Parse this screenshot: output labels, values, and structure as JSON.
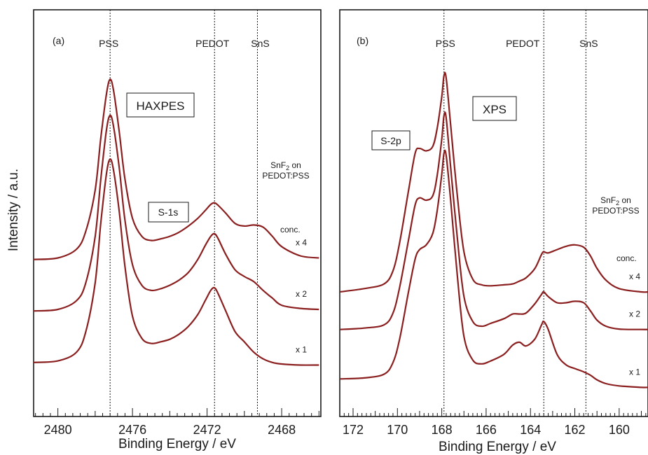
{
  "ylabel": "Intensity / a.u.",
  "chart_data": [
    {
      "type": "line",
      "panel": "(a)",
      "technique": "HAXPES",
      "orbital": "S-1s",
      "sample_label": [
        "SnF",
        "2",
        " on",
        "PEDOT:PSS"
      ],
      "conc_header": "conc.",
      "xlabel": "Binding Energy / eV",
      "xlim": [
        2481.3,
        2465.9
      ],
      "x_reversed": true,
      "xticks": [
        2480,
        2476,
        2472,
        2468
      ],
      "xtick_labels": [
        "2480",
        "2476",
        "2472",
        "2468"
      ],
      "references": [
        {
          "name": "PSS",
          "x": 2477.2
        },
        {
          "name": "PEDOT",
          "x": 2471.6
        },
        {
          "name": "SnS",
          "x": 2469.3
        }
      ],
      "series": [
        {
          "name": "x 4",
          "x": [
            2481.3,
            2480.0,
            2479.0,
            2478.5,
            2478.0,
            2477.7,
            2477.4,
            2477.2,
            2477.0,
            2476.7,
            2476.4,
            2476.0,
            2475.5,
            2475.0,
            2474.5,
            2474.0,
            2473.5,
            2473.0,
            2472.5,
            2472.1,
            2471.8,
            2471.6,
            2471.4,
            2471.0,
            2470.5,
            2470.0,
            2469.5,
            2469.0,
            2468.5,
            2468.0,
            2467.0,
            2466.0
          ],
          "y": [
            3.05,
            3.08,
            3.25,
            3.6,
            4.4,
            5.4,
            6.25,
            6.55,
            6.3,
            5.5,
            4.6,
            3.85,
            3.5,
            3.42,
            3.45,
            3.5,
            3.58,
            3.7,
            3.85,
            4.0,
            4.12,
            4.15,
            4.1,
            3.95,
            3.75,
            3.7,
            3.72,
            3.68,
            3.5,
            3.3,
            3.12,
            3.08
          ]
        },
        {
          "name": "x 2",
          "x": [
            2481.3,
            2480.0,
            2479.0,
            2478.5,
            2478.0,
            2477.7,
            2477.4,
            2477.2,
            2477.0,
            2476.7,
            2476.4,
            2476.0,
            2475.5,
            2475.0,
            2474.5,
            2474.0,
            2473.5,
            2473.0,
            2472.5,
            2472.1,
            2471.8,
            2471.6,
            2471.4,
            2471.0,
            2470.5,
            2470.0,
            2469.5,
            2469.0,
            2468.5,
            2468.0,
            2467.0,
            2466.0
          ],
          "y": [
            2.05,
            2.08,
            2.25,
            2.6,
            3.5,
            4.6,
            5.55,
            5.85,
            5.6,
            4.8,
            3.8,
            2.95,
            2.55,
            2.45,
            2.48,
            2.55,
            2.65,
            2.8,
            3.05,
            3.32,
            3.5,
            3.55,
            3.45,
            3.15,
            2.85,
            2.72,
            2.62,
            2.45,
            2.3,
            2.16,
            2.1,
            2.08
          ]
        },
        {
          "name": "x 1",
          "x": [
            2481.3,
            2480.0,
            2479.0,
            2478.5,
            2478.0,
            2477.7,
            2477.4,
            2477.2,
            2477.0,
            2476.7,
            2476.4,
            2476.0,
            2475.5,
            2475.0,
            2474.5,
            2474.0,
            2473.5,
            2473.0,
            2472.5,
            2472.1,
            2471.8,
            2471.6,
            2471.4,
            2471.0,
            2470.5,
            2470.0,
            2469.5,
            2469.0,
            2468.5,
            2468.0,
            2467.0,
            2466.0
          ],
          "y": [
            1.05,
            1.08,
            1.25,
            1.65,
            2.6,
            3.75,
            4.7,
            5.0,
            4.75,
            3.95,
            2.9,
            1.95,
            1.52,
            1.42,
            1.45,
            1.5,
            1.6,
            1.75,
            1.98,
            2.25,
            2.45,
            2.5,
            2.38,
            2.05,
            1.65,
            1.45,
            1.25,
            1.12,
            1.05,
            1.02,
            1.0,
            1.0
          ]
        }
      ],
      "ylim": [
        0,
        7.9
      ]
    },
    {
      "type": "line",
      "panel": "(b)",
      "technique": "XPS",
      "orbital": "S-2p",
      "sample_label": [
        "SnF",
        "2",
        " on",
        "PEDOT:PSS"
      ],
      "conc_header": "conc.",
      "xlabel": "Binding Energy / eV",
      "xlim": [
        172.6,
        158.7
      ],
      "x_reversed": true,
      "xticks": [
        172,
        170,
        168,
        166,
        164,
        162,
        160
      ],
      "xtick_labels": [
        "172",
        "170",
        "168",
        "166",
        "164",
        "162",
        "160"
      ],
      "references": [
        {
          "name": "PSS",
          "x": 167.9
        },
        {
          "name": "PEDOT",
          "x": 163.4
        },
        {
          "name": "SnS",
          "x": 161.5
        }
      ],
      "series": [
        {
          "name": "x 4",
          "x": [
            172.6,
            171.5,
            170.6,
            170.2,
            169.9,
            169.5,
            169.2,
            169.0,
            168.7,
            168.4,
            168.2,
            168.0,
            167.9,
            167.8,
            167.6,
            167.3,
            167.0,
            166.6,
            166.2,
            165.8,
            165.2,
            164.8,
            164.5,
            164.2,
            163.8,
            163.5,
            163.4,
            163.2,
            162.8,
            162.4,
            162.0,
            161.6,
            161.3,
            161.0,
            160.6,
            160.0,
            159.0,
            158.7
          ],
          "y": [
            2.45,
            2.52,
            2.62,
            2.9,
            3.5,
            4.6,
            5.4,
            5.5,
            5.45,
            5.55,
            5.95,
            6.6,
            7.05,
            7.0,
            6.0,
            4.5,
            3.3,
            2.72,
            2.6,
            2.58,
            2.6,
            2.62,
            2.68,
            2.75,
            2.95,
            3.25,
            3.3,
            3.28,
            3.35,
            3.42,
            3.45,
            3.4,
            3.22,
            2.95,
            2.7,
            2.52,
            2.45,
            2.45
          ]
        },
        {
          "name": "x 2",
          "x": [
            172.6,
            171.5,
            170.6,
            170.2,
            169.9,
            169.5,
            169.2,
            169.0,
            168.7,
            168.4,
            168.2,
            168.0,
            167.9,
            167.8,
            167.6,
            167.3,
            167.0,
            166.6,
            166.2,
            165.8,
            165.2,
            164.8,
            164.5,
            164.2,
            163.8,
            163.5,
            163.4,
            163.2,
            162.8,
            162.4,
            162.0,
            161.6,
            161.3,
            161.0,
            160.6,
            160.0,
            159.0,
            158.7
          ],
          "y": [
            1.65,
            1.68,
            1.75,
            2.0,
            2.55,
            3.55,
            4.3,
            4.45,
            4.4,
            4.5,
            4.95,
            5.7,
            6.2,
            6.15,
            5.1,
            3.6,
            2.35,
            1.82,
            1.72,
            1.78,
            1.88,
            1.98,
            1.98,
            2.0,
            2.2,
            2.4,
            2.45,
            2.35,
            2.22,
            2.22,
            2.25,
            2.22,
            2.05,
            1.85,
            1.72,
            1.66,
            1.65,
            1.65
          ]
        },
        {
          "name": "x 1",
          "x": [
            172.6,
            171.5,
            170.6,
            170.2,
            169.9,
            169.5,
            169.2,
            169.0,
            168.7,
            168.4,
            168.2,
            168.0,
            167.9,
            167.8,
            167.6,
            167.3,
            167.0,
            166.6,
            166.2,
            165.8,
            165.2,
            164.8,
            164.5,
            164.2,
            163.8,
            163.5,
            163.4,
            163.2,
            162.8,
            162.4,
            162.0,
            161.6,
            161.3,
            161.0,
            160.6,
            160.0,
            159.0,
            158.7
          ],
          "y": [
            0.6,
            0.62,
            0.7,
            0.95,
            1.45,
            2.45,
            3.15,
            3.35,
            3.45,
            3.7,
            4.2,
            4.95,
            5.4,
            5.35,
            4.4,
            2.8,
            1.5,
            1.0,
            0.92,
            0.98,
            1.12,
            1.32,
            1.38,
            1.3,
            1.45,
            1.75,
            1.82,
            1.65,
            1.12,
            0.9,
            0.82,
            0.75,
            0.68,
            0.58,
            0.5,
            0.45,
            0.42,
            0.42
          ]
        }
      ],
      "ylim": [
        -0.2,
        8.45
      ]
    }
  ]
}
